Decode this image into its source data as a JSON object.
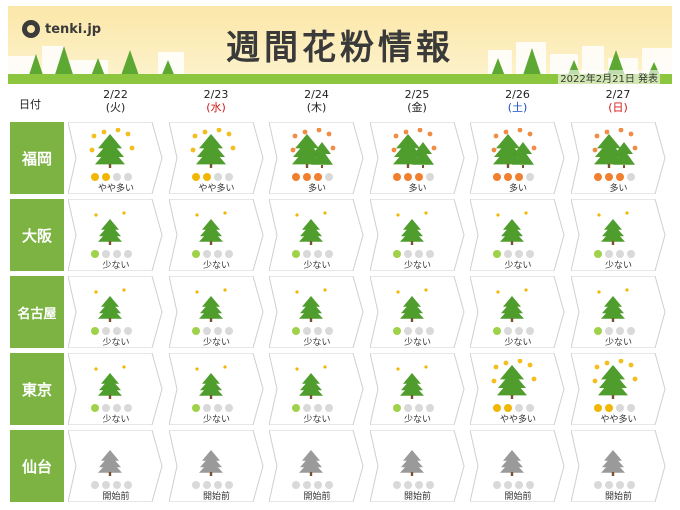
{
  "header": {
    "logo": "tenki.jp",
    "title": "週間花粉情報",
    "issued": "2022年2月21日 発表"
  },
  "date_label": "日付",
  "dates": [
    {
      "date": "2/22",
      "dow": "(火)",
      "dow_type": "weekday"
    },
    {
      "date": "2/23",
      "dow": "(水)",
      "dow_type": "holiday"
    },
    {
      "date": "2/24",
      "dow": "(木)",
      "dow_type": "weekday"
    },
    {
      "date": "2/25",
      "dow": "(金)",
      "dow_type": "weekday"
    },
    {
      "date": "2/26",
      "dow": "(土)",
      "dow_type": "sat"
    },
    {
      "date": "2/27",
      "dow": "(日)",
      "dow_type": "sun"
    }
  ],
  "colors": {
    "city_bg": "#7cb342",
    "dot_low": "#9ed24a",
    "dot_mid": "#f2b705",
    "dot_high": "#f08030",
    "dot_empty": "#d9d9d9",
    "tree_green": "#4f9d2d",
    "tree_gray": "#9a9a9a"
  },
  "cities": [
    {
      "name": "福岡",
      "days": [
        {
          "label": "やや多い",
          "level": 2
        },
        {
          "label": "やや多い",
          "level": 2
        },
        {
          "label": "多い",
          "level": 3
        },
        {
          "label": "多い",
          "level": 3
        },
        {
          "label": "多い",
          "level": 3
        },
        {
          "label": "多い",
          "level": 3
        }
      ]
    },
    {
      "name": "大阪",
      "days": [
        {
          "label": "少ない",
          "level": 1
        },
        {
          "label": "少ない",
          "level": 1
        },
        {
          "label": "少ない",
          "level": 1
        },
        {
          "label": "少ない",
          "level": 1
        },
        {
          "label": "少ない",
          "level": 1
        },
        {
          "label": "少ない",
          "level": 1
        }
      ]
    },
    {
      "name": "名古屋",
      "days": [
        {
          "label": "少ない",
          "level": 1
        },
        {
          "label": "少ない",
          "level": 1
        },
        {
          "label": "少ない",
          "level": 1
        },
        {
          "label": "少ない",
          "level": 1
        },
        {
          "label": "少ない",
          "level": 1
        },
        {
          "label": "少ない",
          "level": 1
        }
      ]
    },
    {
      "name": "東京",
      "days": [
        {
          "label": "少ない",
          "level": 1
        },
        {
          "label": "少ない",
          "level": 1
        },
        {
          "label": "少ない",
          "level": 1
        },
        {
          "label": "少ない",
          "level": 1
        },
        {
          "label": "やや多い",
          "level": 2
        },
        {
          "label": "やや多い",
          "level": 2
        }
      ]
    },
    {
      "name": "仙台",
      "days": [
        {
          "label": "開始前",
          "level": 0
        },
        {
          "label": "開始前",
          "level": 0
        },
        {
          "label": "開始前",
          "level": 0
        },
        {
          "label": "開始前",
          "level": 0
        },
        {
          "label": "開始前",
          "level": 0
        },
        {
          "label": "開始前",
          "level": 0
        }
      ]
    }
  ]
}
